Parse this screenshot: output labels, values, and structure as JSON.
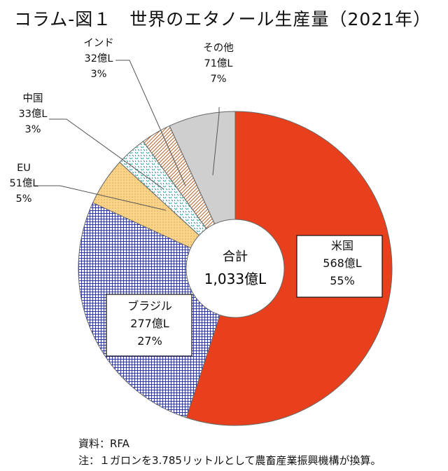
{
  "title": "コラム-図１　世界のエタノール生産量（2021年）",
  "source": "資料：RFA",
  "note": "注：１ガロンを3.785リットルとして農畜産業振興機構が換算。",
  "center_label": {
    "line1": "合計",
    "line2": "1,033億L"
  },
  "chart_data": {
    "type": "pie",
    "donut": true,
    "unit": "億L",
    "total": 1033,
    "slices": [
      {
        "name": "米国",
        "value": 568,
        "label": "568億L",
        "percent": "55%",
        "color": "#e8401c",
        "fill": "solid"
      },
      {
        "name": "ブラジル",
        "value": 277,
        "label": "277億L",
        "percent": "27%",
        "color": "#ffffff",
        "fill": "blue-grid"
      },
      {
        "name": "EU",
        "value": 51,
        "label": "51億L",
        "percent": "5%",
        "color": "#f9d48a",
        "fill": "dotted"
      },
      {
        "name": "中国",
        "value": 33,
        "label": "33億L",
        "percent": "3%",
        "color": "#ffffff",
        "fill": "teal-dashes"
      },
      {
        "name": "インド",
        "value": 32,
        "label": "32億L",
        "percent": "3%",
        "color": "#ffffff",
        "fill": "brown-hatch"
      },
      {
        "name": "その他",
        "value": 71,
        "label": "71億L",
        "percent": "7%",
        "color": "#cfcfcf",
        "fill": "solid"
      }
    ]
  }
}
